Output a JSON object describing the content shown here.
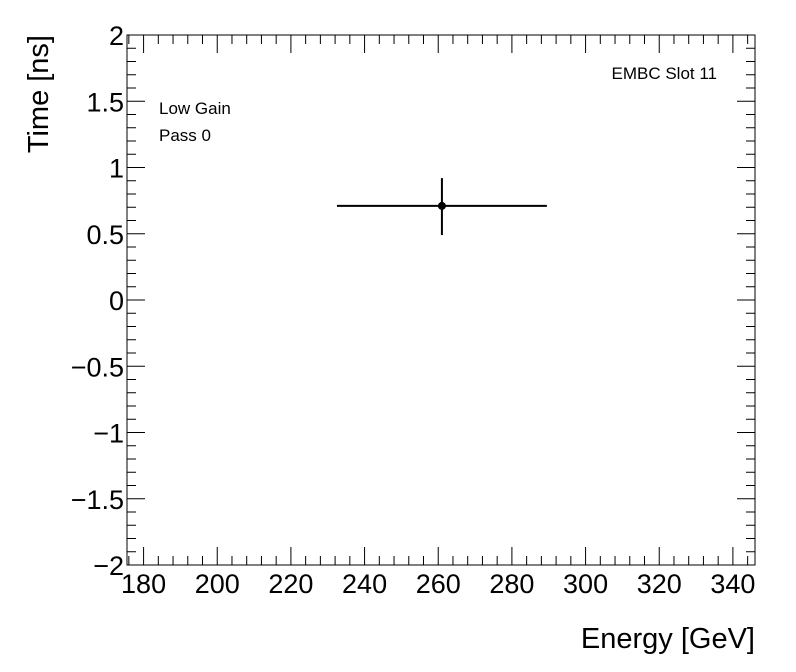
{
  "chart_data": {
    "type": "scatter",
    "xlabel": "Energy [GeV]",
    "ylabel": "Time [ns]",
    "xlim": [
      175.5,
      346
    ],
    "ylim": [
      -2,
      2
    ],
    "x_ticks": [
      180,
      200,
      220,
      240,
      260,
      280,
      300,
      320,
      340
    ],
    "x_tick_labels": [
      "180",
      "200",
      "220",
      "240",
      "260",
      "280",
      "300",
      "320",
      "340"
    ],
    "y_ticks": [
      2,
      1.5,
      1,
      0.5,
      0,
      -0.5,
      -1,
      -1.5,
      -2
    ],
    "y_tick_labels": [
      "2",
      "1.5",
      "1",
      "0.5",
      "0",
      "−0.5",
      "−1",
      "−1.5",
      "−2"
    ],
    "x_minor_step": 4,
    "y_minor_step": 0.1,
    "grid": false,
    "points": [
      {
        "x": 261,
        "y": 0.71,
        "xerr_low": 28.5,
        "xerr_high": 28.5,
        "yerr_low": 0.22,
        "yerr_high": 0.21
      }
    ],
    "annotations": {
      "top_right": "EMBC Slot 11",
      "top_left": [
        "Low Gain",
        "Pass 0"
      ]
    },
    "colors": {
      "frame": "#000000",
      "marker": "#000000",
      "background": "#ffffff"
    }
  }
}
